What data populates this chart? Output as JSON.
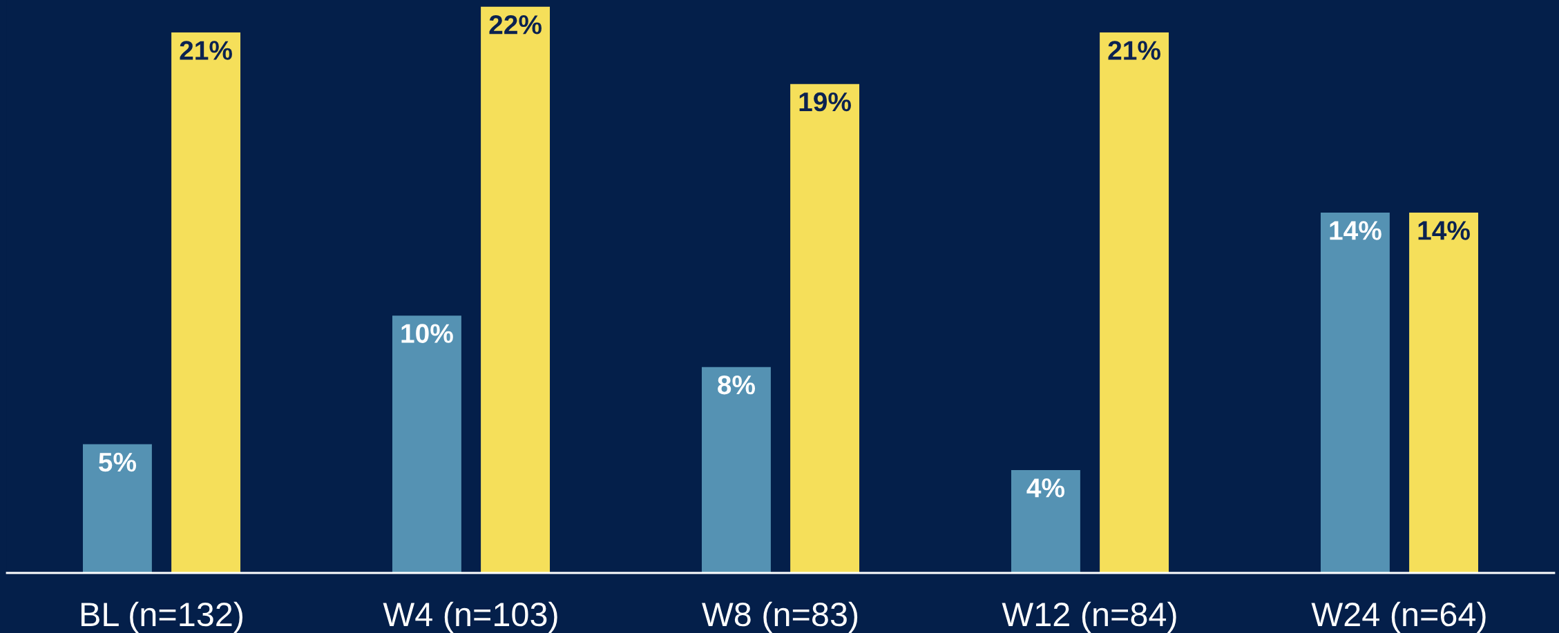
{
  "chart_data": {
    "type": "bar",
    "categories": [
      "BL (n=132)",
      "W4 (n=103)",
      "W8 (n=83)",
      "W12 (n=84)",
      "W24 (n=64)"
    ],
    "series": [
      {
        "color": "#5592b3",
        "values": [
          5,
          10,
          8,
          4,
          14
        ],
        "value_labels": [
          "5%",
          "10%",
          "8%",
          "4%",
          "14%"
        ]
      },
      {
        "color": "#f5df5a",
        "values": [
          21,
          22,
          19,
          21,
          14
        ],
        "value_labels": [
          "21%",
          "22%",
          "19%",
          "21%",
          "14%"
        ]
      }
    ],
    "grid": false,
    "legend": false
  }
}
